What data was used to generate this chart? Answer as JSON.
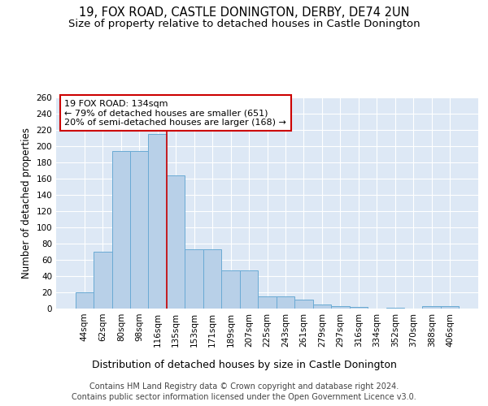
{
  "title_line1": "19, FOX ROAD, CASTLE DONINGTON, DERBY, DE74 2UN",
  "title_line2": "Size of property relative to detached houses in Castle Donington",
  "xlabel": "Distribution of detached houses by size in Castle Donington",
  "ylabel": "Number of detached properties",
  "categories": [
    "44sqm",
    "62sqm",
    "80sqm",
    "98sqm",
    "116sqm",
    "135sqm",
    "153sqm",
    "171sqm",
    "189sqm",
    "207sqm",
    "225sqm",
    "243sqm",
    "261sqm",
    "279sqm",
    "297sqm",
    "316sqm",
    "334sqm",
    "352sqm",
    "370sqm",
    "388sqm",
    "406sqm"
  ],
  "values": [
    20,
    70,
    194,
    194,
    215,
    164,
    73,
    73,
    47,
    47,
    15,
    15,
    11,
    5,
    3,
    2,
    0,
    1,
    0,
    3,
    3
  ],
  "bar_color": "#b8d0e8",
  "bar_edge_color": "#6aaad4",
  "background_color": "#dde8f5",
  "grid_color": "#ffffff",
  "vline_color": "#cc0000",
  "vline_x_index": 5,
  "annotation_text": "19 FOX ROAD: 134sqm\n← 79% of detached houses are smaller (651)\n20% of semi-detached houses are larger (168) →",
  "annotation_box_facecolor": "#ffffff",
  "annotation_box_edgecolor": "#cc0000",
  "footer_line1": "Contains HM Land Registry data © Crown copyright and database right 2024.",
  "footer_line2": "Contains public sector information licensed under the Open Government Licence v3.0.",
  "ylim": [
    0,
    260
  ],
  "yticks": [
    0,
    20,
    40,
    60,
    80,
    100,
    120,
    140,
    160,
    180,
    200,
    220,
    240,
    260
  ],
  "title_fontsize": 10.5,
  "subtitle_fontsize": 9.5,
  "ylabel_fontsize": 8.5,
  "xlabel_fontsize": 9,
  "tick_fontsize": 7.5,
  "annotation_fontsize": 8,
  "footer_fontsize": 7
}
